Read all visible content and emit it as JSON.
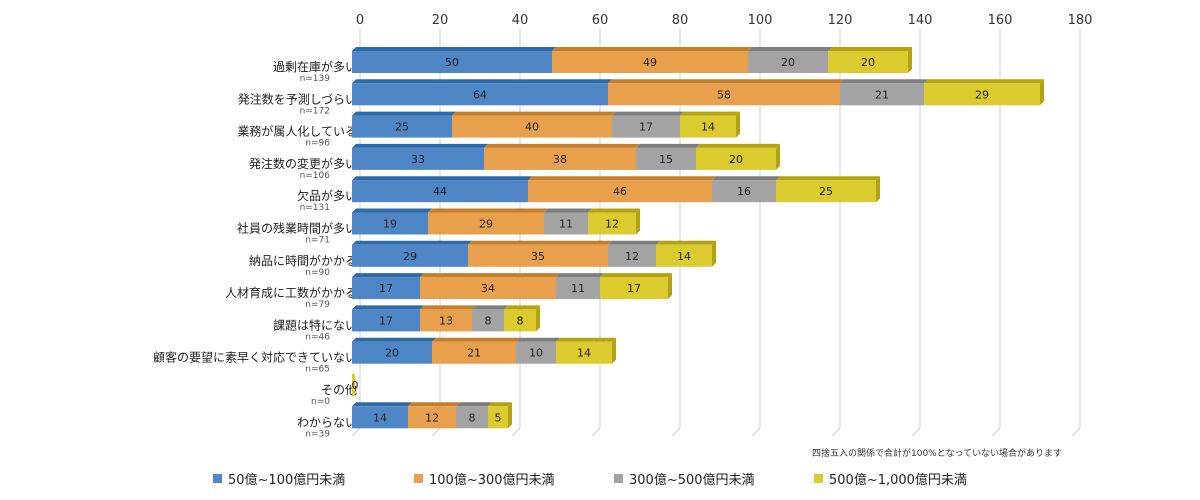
{
  "chart_data": {
    "type": "bar",
    "orientation": "horizontal",
    "stacked": true,
    "xlim": [
      0,
      180
    ],
    "xticks": [
      0,
      20,
      40,
      60,
      80,
      100,
      120,
      140,
      160,
      180
    ],
    "grid": true,
    "legend_position": "bottom",
    "categories": [
      {
        "label": "過剰在庫が多い",
        "n": "n=139"
      },
      {
        "label": "発注数を予測しづらい",
        "n": "n=172"
      },
      {
        "label": "業務が属人化している",
        "n": "n=96"
      },
      {
        "label": "発注数の変更が多い",
        "n": "n=106"
      },
      {
        "label": "欠品が多い",
        "n": "n=131"
      },
      {
        "label": "社員の残業時間が多い",
        "n": "n=71"
      },
      {
        "label": "納品に時間がかかる",
        "n": "n=90"
      },
      {
        "label": "人材育成に工数がかかる",
        "n": "n=79"
      },
      {
        "label": "課題は特にない",
        "n": "n=46"
      },
      {
        "label": "顧客の要望に素早く対応できていない",
        "n": "n=65"
      },
      {
        "label": "その他",
        "n": "n=0"
      },
      {
        "label": "わからない",
        "n": "n=39"
      }
    ],
    "series": [
      {
        "name": "50億~100億円未満",
        "color": "#4f86c6",
        "top_color": "#2f6aa8",
        "values": [
          50,
          64,
          25,
          33,
          44,
          19,
          29,
          17,
          17,
          20,
          0,
          14
        ]
      },
      {
        "name": "100億~300億円未満",
        "color": "#e9a04c",
        "top_color": "#c47f2c",
        "values": [
          49,
          58,
          40,
          38,
          46,
          29,
          35,
          34,
          13,
          21,
          0,
          12
        ]
      },
      {
        "name": "300億~500億円未満",
        "color": "#a3a3a3",
        "top_color": "#7e7e7e",
        "values": [
          20,
          21,
          17,
          15,
          16,
          11,
          12,
          11,
          8,
          10,
          0,
          8
        ]
      },
      {
        "name": "500億~1,000億円未満",
        "color": "#dccb2e",
        "top_color": "#b3a312",
        "values": [
          20,
          29,
          14,
          20,
          25,
          12,
          14,
          17,
          8,
          14,
          0,
          5
        ]
      }
    ],
    "zero_label": "0",
    "note": "四捨五入の関係で合計が100%となっていない場合があります"
  }
}
